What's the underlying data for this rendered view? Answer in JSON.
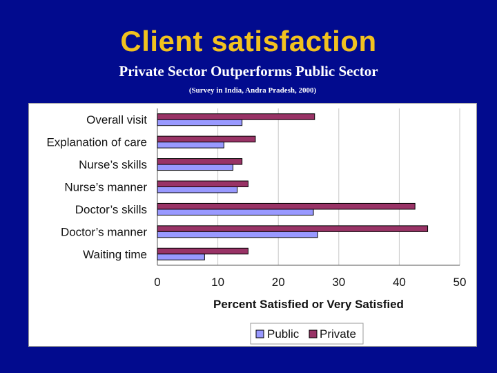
{
  "slide": {
    "title": "Client satisfaction",
    "subtitle": "Private Sector Outperforms Public Sector",
    "note": "(Survey in India, Andra Pradesh, 2000)",
    "title_color": "#f2c21f",
    "background_color": "#020b8e"
  },
  "chart_data": {
    "type": "bar",
    "orientation": "horizontal",
    "categories": [
      "Overall visit",
      "Explanation of care",
      "Nurse’s skills",
      "Nurse’s manner",
      "Doctor’s skills",
      "Doctor’s manner",
      "Waiting time"
    ],
    "series": [
      {
        "name": "Public",
        "color": "#9999ff",
        "values": [
          14,
          11,
          12.5,
          13.2,
          25.8,
          26.5,
          7.8
        ]
      },
      {
        "name": "Private",
        "color": "#993366",
        "values": [
          26,
          16.2,
          14,
          15,
          42.6,
          44.7,
          15
        ]
      }
    ],
    "xlabel": "Percent Satisfied or Very Satisfied",
    "ylabel": "",
    "xlim": [
      0,
      50
    ],
    "xticks": [
      0,
      10,
      20,
      30,
      40,
      50
    ],
    "grid": true,
    "legend_position": "bottom"
  }
}
